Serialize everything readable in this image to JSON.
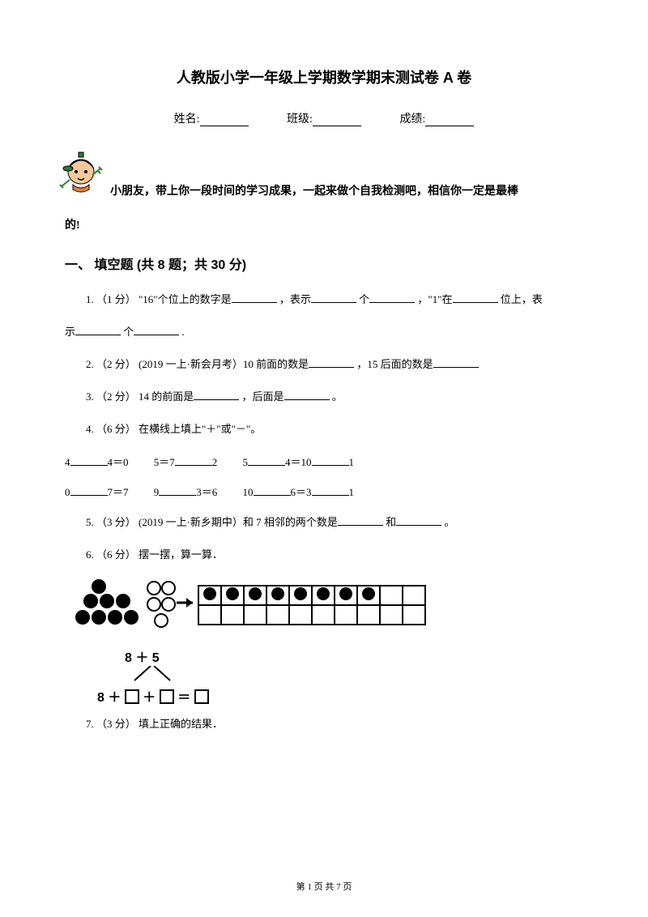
{
  "title": "人教版小学一年级上学期数学期末测试卷 A 卷",
  "info": {
    "name_label": "姓名:",
    "class_label": "班级:",
    "score_label": "成绩:"
  },
  "intro": {
    "line1": "小朋友，带上你一段时间的学习成果，一起来做个自我检测吧，相信你一定是最棒",
    "line2": "的!"
  },
  "section1": {
    "heading": "一、 填空题  (共 8 题；共 30 分)",
    "q1_a": "1.  （1 分）  \"16\"个位上的数字是",
    "q1_b": "，表示",
    "q1_c": "个",
    "q1_d": "，\"1\"在",
    "q1_e": "位上，表",
    "q1_line2_a": "示",
    "q1_line2_b": "个",
    "q1_line2_c": ".",
    "q2_a": "2.  （2 分）  (2019 一上·新会月考）10 前面的数是",
    "q2_b": "，15 后面的数是",
    "q3_a": "3.  （2 分）  14 的前面是",
    "q3_b": "，后面是",
    "q3_c": "。",
    "q4": "4.  （6 分）  在横线上填上\"＋\"或\"－\"。",
    "eq_row1": {
      "e1a": "4",
      "e1b": "4＝0",
      "e2a": "5＝7",
      "e2b": "2",
      "e3a": "5",
      "e3b": "4＝10",
      "e3c": "1"
    },
    "eq_row2": {
      "e1a": "0",
      "e1b": "7＝7",
      "e2a": "9",
      "e2b": "3＝6",
      "e3a": "10",
      "e3b": "6＝3",
      "e3c": "1"
    },
    "q5_a": "5.  （3 分）  (2019 一上·新乡期中）和 7 相邻的两个数是",
    "q5_b": "和",
    "q5_c": "。",
    "q6": "6.  （6 分）  摆一摆，算一算．",
    "expr_top": "8 ＋ 5",
    "expr_bottom_a": "8 ＋",
    "expr_bottom_b": "＋",
    "expr_bottom_c": "＝",
    "q7": "7.  （3 分）  填上正确的结果．"
  },
  "figure": {
    "black_dots_group": 8,
    "white_circles_group": 5,
    "frame_filled": 8,
    "frame_cols": 10
  },
  "colors": {
    "text": "#000000",
    "background": "#ffffff",
    "mascot_cap": "#2e7d32",
    "mascot_skin": "#f5c89a",
    "mascot_shirt": "#f08030"
  },
  "footer": "第 1 页 共 7 页"
}
